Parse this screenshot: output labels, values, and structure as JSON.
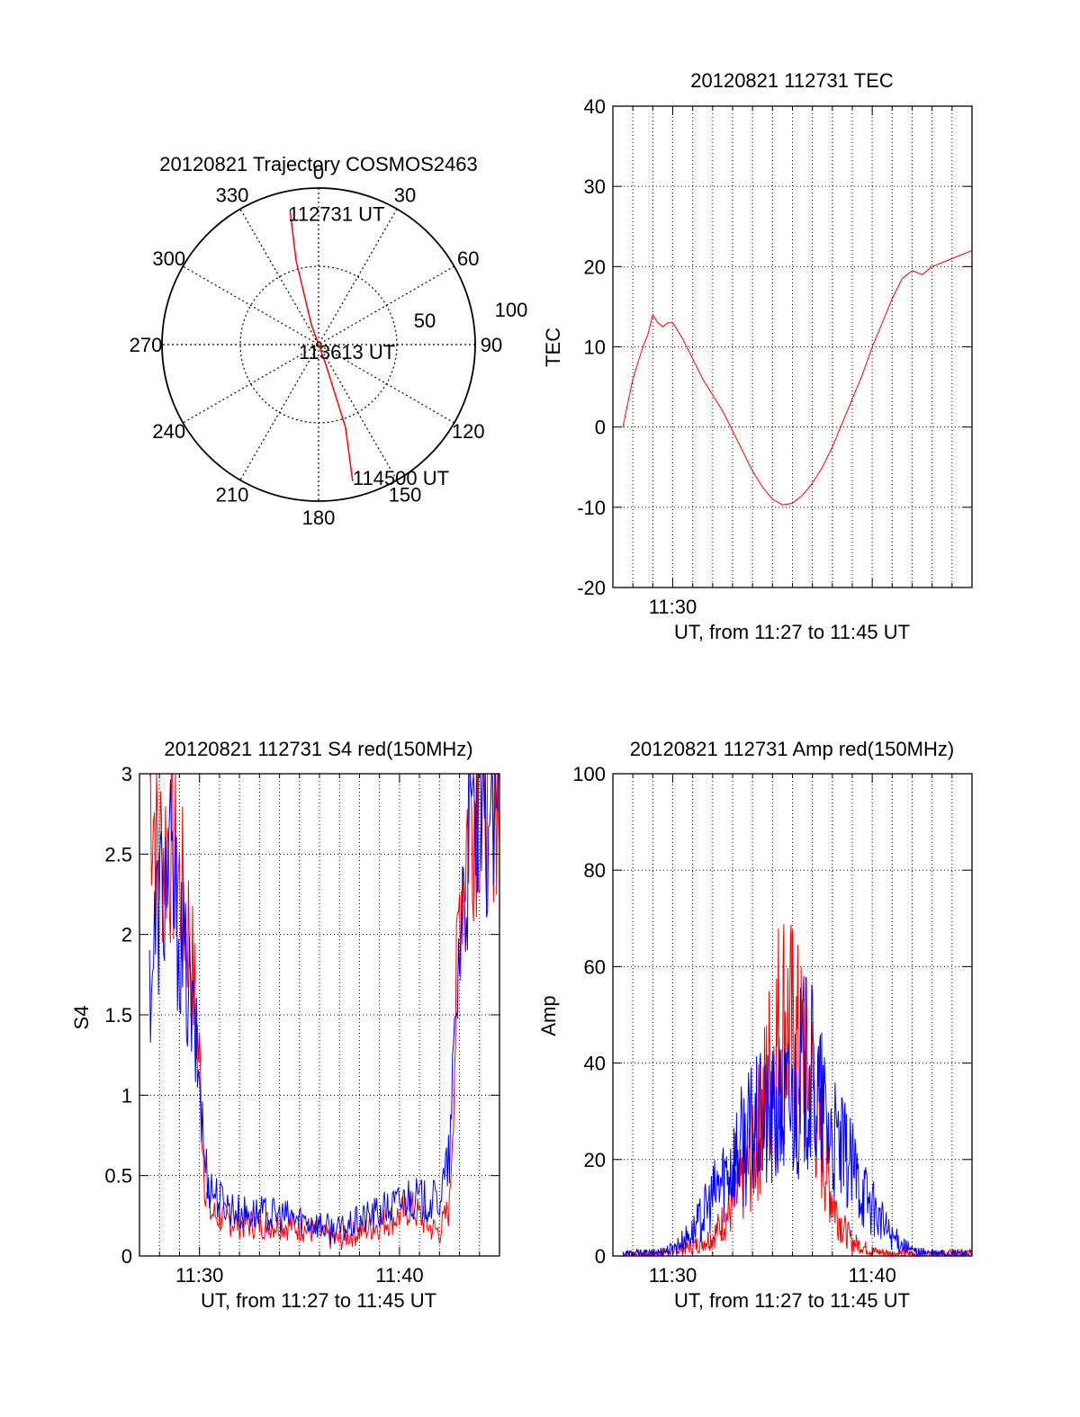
{
  "chart_data": [
    {
      "type": "polar",
      "title": "20120821 Trajectory COSMOS2463",
      "azimuth_labels": [
        "0",
        "30",
        "60",
        "90",
        "120",
        "150",
        "180",
        "210",
        "240",
        "270",
        "300",
        "330"
      ],
      "elevation_labels": [
        "50",
        "100"
      ],
      "trajectory": {
        "start_label": "112731 UT",
        "mid_label": "113613 UT",
        "end_label": "114500 UT",
        "color": "#ff0000",
        "points": [
          {
            "az": 348,
            "el": 11
          },
          {
            "az": 345,
            "el": 40
          },
          {
            "az": 340,
            "el": 78
          },
          {
            "az": 160,
            "el": 78
          },
          {
            "az": 162,
            "el": 40
          },
          {
            "az": 166,
            "el": 9
          }
        ]
      }
    },
    {
      "type": "line",
      "title": "20120821 112731 TEC",
      "xlabel": "UT, from 11:27 to 11:45 UT",
      "ylabel": "TEC",
      "xlim": [
        "11:27",
        "11:45"
      ],
      "ylim": [
        -20,
        40
      ],
      "yticks": [
        "-20",
        "-10",
        "0",
        "10",
        "20",
        "30",
        "40"
      ],
      "xtick_labels": [
        {
          "t": "11:30",
          "label": "11:30"
        }
      ],
      "series": [
        {
          "color": "#ff0000",
          "points": [
            [
              "11:27:30",
              0
            ],
            [
              "11:27:45",
              3
            ],
            [
              "11:28:00",
              6
            ],
            [
              "11:28:15",
              8
            ],
            [
              "11:28:30",
              10
            ],
            [
              "11:28:45",
              11.5
            ],
            [
              "11:29:00",
              14
            ],
            [
              "11:29:15",
              13
            ],
            [
              "11:29:30",
              12.5
            ],
            [
              "11:29:45",
              13
            ],
            [
              "11:30:00",
              13
            ],
            [
              "11:30:30",
              11
            ],
            [
              "11:31:00",
              8.5
            ],
            [
              "11:31:30",
              6
            ],
            [
              "11:32:00",
              4
            ],
            [
              "11:32:30",
              2
            ],
            [
              "11:33:00",
              -0.5
            ],
            [
              "11:33:30",
              -3
            ],
            [
              "11:34:00",
              -5.5
            ],
            [
              "11:34:30",
              -7.5
            ],
            [
              "11:35:00",
              -9
            ],
            [
              "11:35:30",
              -9.7
            ],
            [
              "11:36:00",
              -9.5
            ],
            [
              "11:36:30",
              -8.5
            ],
            [
              "11:37:00",
              -7
            ],
            [
              "11:37:30",
              -5
            ],
            [
              "11:38:00",
              -2.5
            ],
            [
              "11:38:30",
              0.5
            ],
            [
              "11:39:00",
              3.5
            ],
            [
              "11:39:30",
              6.5
            ],
            [
              "11:40:00",
              10
            ],
            [
              "11:40:30",
              13
            ],
            [
              "11:41:00",
              16
            ],
            [
              "11:41:30",
              18.5
            ],
            [
              "11:42:00",
              19.5
            ],
            [
              "11:42:30",
              19
            ],
            [
              "11:43:00",
              20
            ],
            [
              "11:43:30",
              20.5
            ],
            [
              "11:44:00",
              21
            ],
            [
              "11:44:30",
              21.5
            ],
            [
              "11:45:00",
              22
            ]
          ]
        }
      ]
    },
    {
      "type": "line",
      "title": "20120821 112731 S4 red(150MHz)",
      "xlabel": "UT, from 11:27 to 11:45 UT",
      "ylabel": "S4",
      "xlim": [
        "11:27",
        "11:45"
      ],
      "ylim": [
        0,
        3
      ],
      "yticks": [
        "0",
        "0.5",
        "1",
        "1.5",
        "2",
        "2.5",
        "3"
      ],
      "xtick_labels": [
        {
          "t": "11:30",
          "label": "11:30"
        },
        {
          "t": "11:40",
          "label": "11:40"
        }
      ],
      "series": [
        {
          "color": "#ff0000",
          "points": [
            [
              "11:27:30",
              3
            ],
            [
              "11:28:00",
              2.5
            ],
            [
              "11:28:30",
              2.6
            ],
            [
              "11:29:00",
              2.3
            ],
            [
              "11:29:30",
              2.0
            ],
            [
              "11:30:00",
              1.2
            ],
            [
              "11:30:15",
              0.5
            ],
            [
              "11:30:30",
              0.27
            ],
            [
              "11:31:00",
              0.24
            ],
            [
              "11:32:00",
              0.2
            ],
            [
              "11:33:00",
              0.2
            ],
            [
              "11:34:00",
              0.2
            ],
            [
              "11:35:00",
              0.18
            ],
            [
              "11:36:00",
              0.14
            ],
            [
              "11:36:30",
              0.11
            ],
            [
              "11:37:00",
              0.1
            ],
            [
              "11:37:30",
              0.13
            ],
            [
              "11:38:00",
              0.15
            ],
            [
              "11:39:00",
              0.2
            ],
            [
              "11:40:00",
              0.25
            ],
            [
              "11:40:30",
              0.3
            ],
            [
              "11:41:00",
              0.25
            ],
            [
              "11:41:30",
              0.18
            ],
            [
              "11:42:00",
              0.15
            ],
            [
              "11:42:30",
              0.3
            ],
            [
              "11:43:00",
              2.2
            ],
            [
              "11:43:30",
              2.8
            ],
            [
              "11:44:00",
              2.9
            ],
            [
              "11:44:30",
              3
            ],
            [
              "11:45:00",
              2.9
            ]
          ]
        },
        {
          "color": "#0000ff",
          "points": [
            [
              "11:27:30",
              1.7
            ],
            [
              "11:28:00",
              2.2
            ],
            [
              "11:28:30",
              2.4
            ],
            [
              "11:29:00",
              2.0
            ],
            [
              "11:29:30",
              1.6
            ],
            [
              "11:30:00",
              1.1
            ],
            [
              "11:30:15",
              0.6
            ],
            [
              "11:30:30",
              0.45
            ],
            [
              "11:31:00",
              0.35
            ],
            [
              "11:32:00",
              0.27
            ],
            [
              "11:33:00",
              0.26
            ],
            [
              "11:34:00",
              0.25
            ],
            [
              "11:35:00",
              0.23
            ],
            [
              "11:36:00",
              0.2
            ],
            [
              "11:36:30",
              0.17
            ],
            [
              "11:37:00",
              0.16
            ],
            [
              "11:37:30",
              0.18
            ],
            [
              "11:38:00",
              0.22
            ],
            [
              "11:39:00",
              0.27
            ],
            [
              "11:40:00",
              0.33
            ],
            [
              "11:40:30",
              0.38
            ],
            [
              "11:41:00",
              0.35
            ],
            [
              "11:41:30",
              0.33
            ],
            [
              "11:42:00",
              0.35
            ],
            [
              "11:42:30",
              0.6
            ],
            [
              "11:43:00",
              2.0
            ],
            [
              "11:43:30",
              2.6
            ],
            [
              "11:44:00",
              2.8
            ],
            [
              "11:44:30",
              2.7
            ],
            [
              "11:45:00",
              2.9
            ]
          ]
        }
      ]
    },
    {
      "type": "line",
      "title": "20120821 112731 Amp red(150MHz)",
      "xlabel": "UT, from 11:27 to 11:45 UT",
      "ylabel": "Amp",
      "xlim": [
        "11:27",
        "11:45"
      ],
      "ylim": [
        0,
        100
      ],
      "yticks": [
        "0",
        "20",
        "40",
        "60",
        "80",
        "100"
      ],
      "xtick_labels": [
        {
          "t": "11:30",
          "label": "11:30"
        },
        {
          "t": "11:40",
          "label": "11:40"
        }
      ],
      "series": [
        {
          "color": "#ff0000",
          "points": [
            [
              "11:27:30",
              0.5
            ],
            [
              "11:29:00",
              0.5
            ],
            [
              "11:30:00",
              1
            ],
            [
              "11:31:00",
              2
            ],
            [
              "11:32:00",
              4
            ],
            [
              "11:33:00",
              10
            ],
            [
              "11:34:00",
              20
            ],
            [
              "11:34:30",
              30
            ],
            [
              "11:35:00",
              42
            ],
            [
              "11:35:30",
              50
            ],
            [
              "11:36:00",
              45
            ],
            [
              "11:36:30",
              40
            ],
            [
              "11:37:00",
              35
            ],
            [
              "11:37:30",
              22
            ],
            [
              "11:38:00",
              12
            ],
            [
              "11:38:30",
              6
            ],
            [
              "11:39:00",
              3
            ],
            [
              "11:40:00",
              1
            ],
            [
              "11:41:00",
              0.5
            ],
            [
              "11:45:00",
              0.5
            ]
          ]
        },
        {
          "color": "#0000ff",
          "points": [
            [
              "11:27:30",
              0.5
            ],
            [
              "11:29:00",
              0.5
            ],
            [
              "11:30:00",
              1.5
            ],
            [
              "11:31:00",
              5
            ],
            [
              "11:32:00",
              12
            ],
            [
              "11:33:00",
              20
            ],
            [
              "11:34:00",
              26
            ],
            [
              "11:35:00",
              28
            ],
            [
              "11:36:00",
              32
            ],
            [
              "11:36:30",
              38
            ],
            [
              "11:37:00",
              36
            ],
            [
              "11:37:30",
              30
            ],
            [
              "11:38:00",
              24
            ],
            [
              "11:39:00",
              18
            ],
            [
              "11:40:00",
              10
            ],
            [
              "11:41:00",
              4
            ],
            [
              "11:42:00",
              1
            ],
            [
              "11:43:00",
              0.5
            ],
            [
              "11:45:00",
              0.5
            ]
          ]
        }
      ]
    }
  ]
}
